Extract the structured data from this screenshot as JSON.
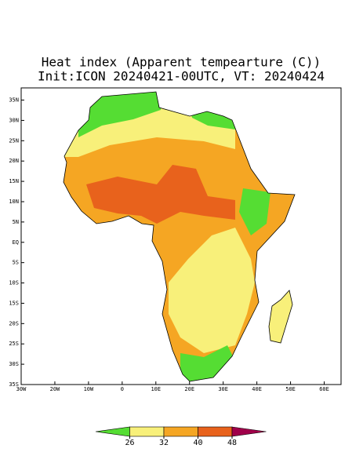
{
  "title": "Heat index (Apparent tempearture (C))",
  "subtitle": "Init:ICON 20240421-00UTC, VT: 20240424",
  "map": {
    "xlim": [
      -30,
      65
    ],
    "ylim": [
      -35,
      38
    ],
    "xticks": [
      {
        "value": -30,
        "label": "30W"
      },
      {
        "value": -20,
        "label": "20W"
      },
      {
        "value": -10,
        "label": "10W"
      },
      0,
      {
        "value": 10,
        "label": "10E"
      },
      {
        "value": 20,
        "label": "20E"
      },
      {
        "value": 30,
        "label": "30E"
      },
      {
        "value": 40,
        "label": "40E"
      },
      {
        "value": 50,
        "label": "50E"
      },
      {
        "value": 60,
        "label": "60E"
      }
    ],
    "yticks": [
      {
        "value": 35,
        "label": "35N"
      },
      {
        "value": 30,
        "label": "30N"
      },
      {
        "value": 25,
        "label": "25N"
      },
      {
        "value": 20,
        "label": "20N"
      },
      {
        "value": 15,
        "label": "15N"
      },
      {
        "value": 10,
        "label": "10N"
      },
      {
        "value": 5,
        "label": "5N"
      },
      {
        "value": 0,
        "label": "EQ"
      },
      {
        "value": -5,
        "label": "5S"
      },
      {
        "value": -10,
        "label": "10S"
      },
      {
        "value": -15,
        "label": "15S"
      },
      {
        "value": -20,
        "label": "20S"
      },
      {
        "value": -25,
        "label": "25S"
      },
      {
        "value": -30,
        "label": "30S"
      },
      {
        "value": -35,
        "label": "35S"
      }
    ]
  },
  "colorbar": {
    "ticks": [
      26,
      32,
      40,
      48
    ],
    "colors": [
      "#55dd33",
      "#f8f07a",
      "#f5a623",
      "#e8621c",
      "#a0004a"
    ]
  }
}
